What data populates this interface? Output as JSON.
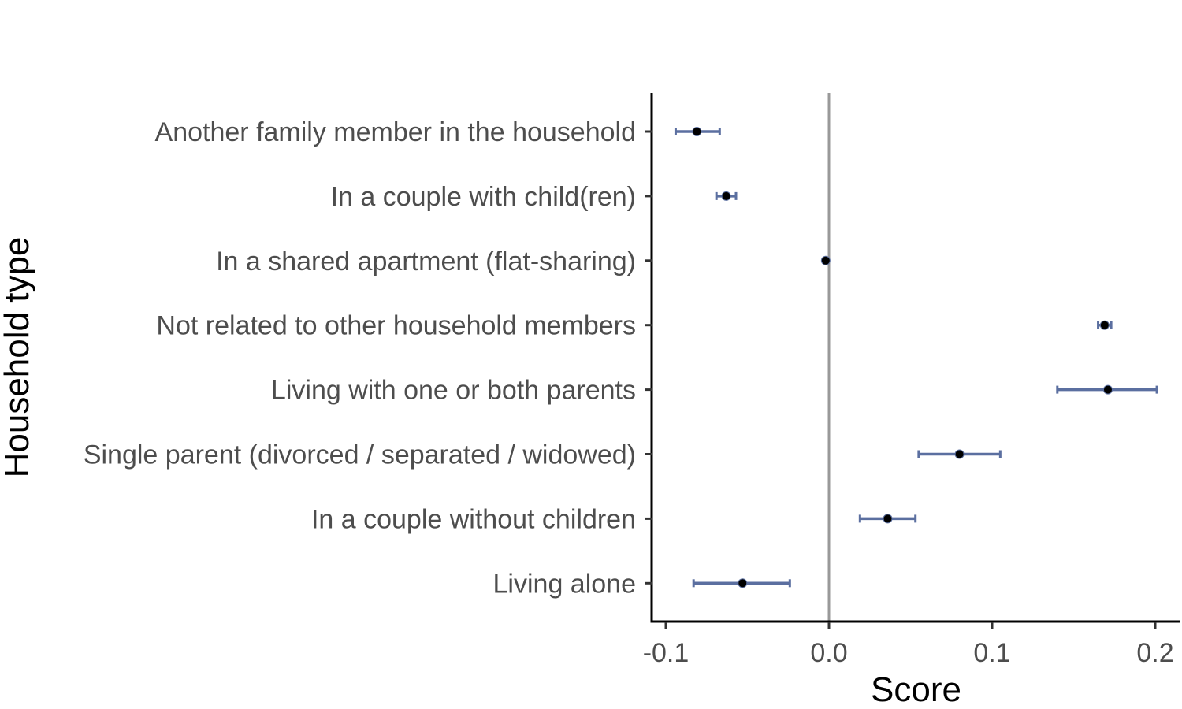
{
  "chart_data": {
    "type": "scatter",
    "title": "",
    "xlabel": "Score",
    "ylabel": "Household type",
    "xlim": [
      -0.11,
      0.215
    ],
    "xticks": [
      -0.1,
      0.0,
      0.1,
      0.2
    ],
    "xtick_labels": [
      "-0.1",
      "0.0",
      "0.1",
      "0.2"
    ],
    "reference_line_x": 0.0,
    "grid": false,
    "legend": "none",
    "categories": [
      "Another family member in the household",
      "In a couple with child(ren)",
      "In a shared apartment (flat-sharing)",
      "Not related to other household members",
      "Living with one or both parents",
      "Single parent (divorced / separated / widowed)",
      "In a couple without children",
      "Living alone"
    ],
    "points": [
      {
        "category": "Another family member in the household",
        "estimate": -0.081,
        "lower": -0.094,
        "upper": -0.067
      },
      {
        "category": "In a couple with child(ren)",
        "estimate": -0.063,
        "lower": -0.069,
        "upper": -0.057
      },
      {
        "category": "In a shared apartment (flat-sharing)",
        "estimate": -0.002,
        "lower": -0.002,
        "upper": -0.002
      },
      {
        "category": "Not related to other household members",
        "estimate": 0.169,
        "lower": 0.165,
        "upper": 0.173
      },
      {
        "category": "Living with one or both parents",
        "estimate": 0.171,
        "lower": 0.14,
        "upper": 0.201
      },
      {
        "category": "Single parent (divorced / separated / widowed)",
        "estimate": 0.08,
        "lower": 0.055,
        "upper": 0.105
      },
      {
        "category": "In a couple without children",
        "estimate": 0.036,
        "lower": 0.019,
        "upper": 0.053
      },
      {
        "category": "Living alone",
        "estimate": -0.053,
        "lower": -0.083,
        "upper": -0.024
      }
    ],
    "colors": {
      "point": "#000000",
      "errorbar": "#5b6fa0",
      "reference_line": "#999999",
      "axis": "#000000",
      "tick_label": "#4d4d4d"
    }
  }
}
